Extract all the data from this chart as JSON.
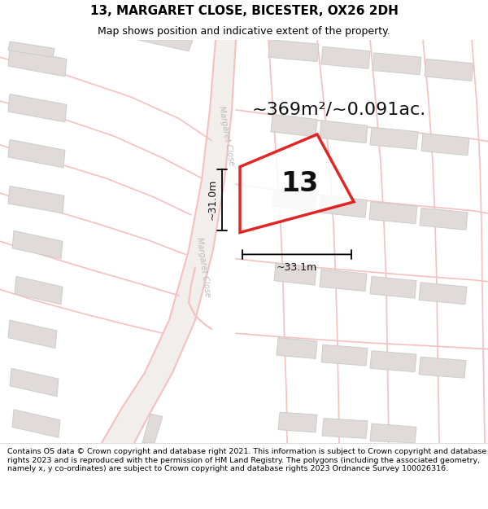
{
  "title": "13, MARGARET CLOSE, BICESTER, OX26 2DH",
  "subtitle": "Map shows position and indicative extent of the property.",
  "area_text": "~369m²/~0.091ac.",
  "plot_number": "13",
  "dim_width": "~33.1m",
  "dim_height": "~31.0m",
  "footer": "Contains OS data © Crown copyright and database right 2021. This information is subject to Crown copyright and database rights 2023 and is reproduced with the permission of HM Land Registry. The polygons (including the associated geometry, namely x, y co-ordinates) are subject to Crown copyright and database rights 2023 Ordnance Survey 100026316.",
  "bg_color": "#ffffff",
  "map_bg": "#ffffff",
  "road_color": "#f5c0c0",
  "road_fill": "#f0f0f0",
  "building_fill": "#e0dbd8",
  "building_edge": "#cccccc",
  "plot_edge_color": "#dd0000",
  "dim_line_color": "#000000",
  "street_label_color": "#aaaaaa",
  "title_fontsize": 11,
  "subtitle_fontsize": 9,
  "area_fontsize": 16,
  "plot_num_fontsize": 24,
  "dim_fontsize": 9,
  "footer_fontsize": 6.8
}
